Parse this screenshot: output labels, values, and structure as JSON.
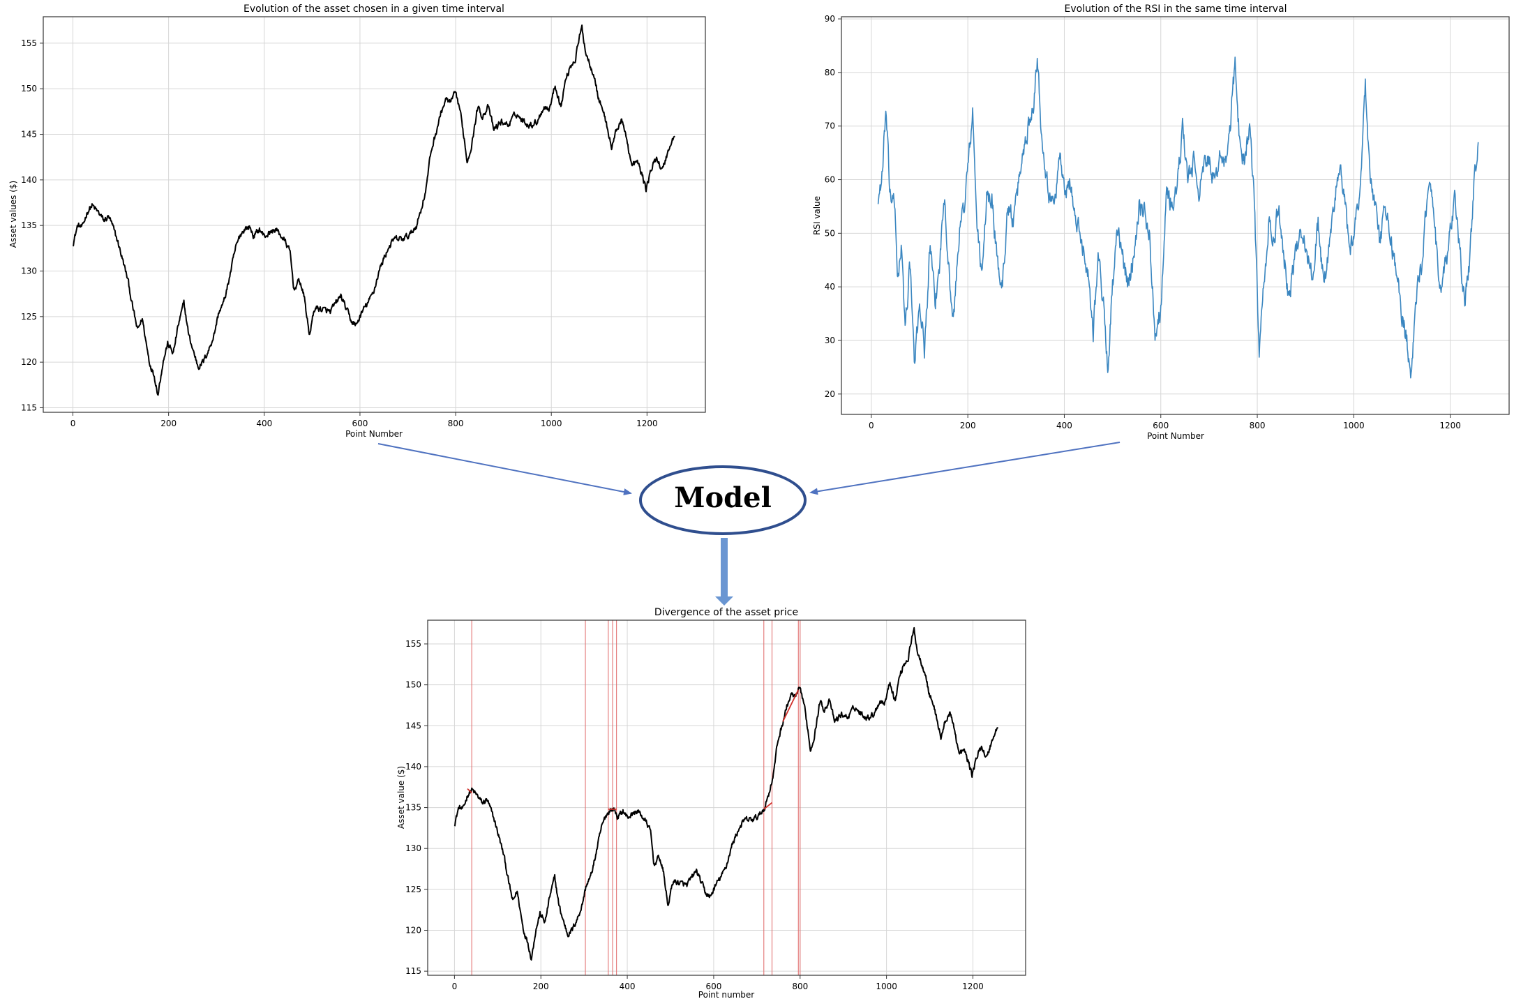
{
  "model": {
    "label": "Model"
  },
  "colors": {
    "price_line": "#000000",
    "rsi_line": "#3a86c0",
    "arrow": "#4f72c0",
    "model_border": "#2f4e8e",
    "down_arrow": "#6a96d2",
    "divergence": "#e06a6a",
    "grid": "#d6d6d6"
  },
  "chart_data": [
    {
      "id": "asset",
      "type": "line",
      "title": "Evolution of the asset chosen in a given time interval",
      "xlabel": "Point Number",
      "ylabel": "Asset values ($)",
      "xlim": [
        -62,
        1322
      ],
      "ylim": [
        114.5,
        157.9
      ],
      "xticks": [
        0,
        200,
        400,
        600,
        800,
        1000,
        1200
      ],
      "yticks": [
        115,
        120,
        125,
        130,
        135,
        140,
        145,
        150,
        155
      ],
      "grid": true,
      "series": [
        {
          "color": "#000000",
          "keypoints": [
            [
              0,
              133
            ],
            [
              10,
              135
            ],
            [
              20,
              134.8
            ],
            [
              30,
              136.5
            ],
            [
              40,
              137.2
            ],
            [
              55,
              136.3
            ],
            [
              65,
              135.5
            ],
            [
              75,
              136
            ],
            [
              85,
              134.6
            ],
            [
              95,
              133
            ],
            [
              105,
              131
            ],
            [
              115,
              129
            ],
            [
              125,
              126
            ],
            [
              135,
              123.5
            ],
            [
              145,
              124.8
            ],
            [
              155,
              121.5
            ],
            [
              160,
              120
            ],
            [
              170,
              118.5
            ],
            [
              178,
              116.5
            ],
            [
              188,
              120
            ],
            [
              198,
              122
            ],
            [
              210,
              121
            ],
            [
              220,
              124
            ],
            [
              232,
              126.5
            ],
            [
              242,
              123
            ],
            [
              250,
              121.5
            ],
            [
              262,
              119.5
            ],
            [
              272,
              120
            ],
            [
              285,
              121.5
            ],
            [
              295,
              123
            ],
            [
              305,
              125.5
            ],
            [
              315,
              126.5
            ],
            [
              322,
              128
            ],
            [
              330,
              130
            ],
            [
              340,
              132.5
            ],
            [
              350,
              134
            ],
            [
              360,
              134.7
            ],
            [
              370,
              134.8
            ],
            [
              378,
              133.8
            ],
            [
              390,
              134.6
            ],
            [
              400,
              133.8
            ],
            [
              412,
              134.2
            ],
            [
              424,
              134.6
            ],
            [
              436,
              133.8
            ],
            [
              446,
              133
            ],
            [
              454,
              132
            ],
            [
              462,
              128
            ],
            [
              474,
              129
            ],
            [
              484,
              127
            ],
            [
              494,
              123
            ],
            [
              506,
              126
            ],
            [
              520,
              125.8
            ],
            [
              538,
              125.5
            ],
            [
              550,
              126.5
            ],
            [
              560,
              127.3
            ],
            [
              570,
              126
            ],
            [
              582,
              124.5
            ],
            [
              592,
              124
            ],
            [
              600,
              125
            ],
            [
              610,
              126
            ],
            [
              620,
              126.8
            ],
            [
              630,
              128
            ],
            [
              640,
              130
            ],
            [
              650,
              131.4
            ],
            [
              660,
              132.6
            ],
            [
              672,
              133.5
            ],
            [
              690,
              133.5
            ],
            [
              705,
              134
            ],
            [
              718,
              135
            ],
            [
              728,
              136.8
            ],
            [
              738,
              139
            ],
            [
              748,
              143
            ],
            [
              758,
              145
            ],
            [
              770,
              147.5
            ],
            [
              780,
              148.8
            ],
            [
              790,
              148.5
            ],
            [
              798,
              149.5
            ],
            [
              808,
              148
            ],
            [
              818,
              144.5
            ],
            [
              824,
              142
            ],
            [
              834,
              144
            ],
            [
              846,
              148
            ],
            [
              856,
              147
            ],
            [
              868,
              148
            ],
            [
              880,
              145.5
            ],
            [
              896,
              146.4
            ],
            [
              910,
              146
            ],
            [
              926,
              147.3
            ],
            [
              940,
              146.5
            ],
            [
              956,
              146
            ],
            [
              970,
              146.4
            ],
            [
              984,
              148
            ],
            [
              996,
              147.8
            ],
            [
              1008,
              150.4
            ],
            [
              1020,
              148
            ],
            [
              1030,
              151
            ],
            [
              1040,
              152.5
            ],
            [
              1050,
              153.2
            ],
            [
              1056,
              155
            ],
            [
              1064,
              156.7
            ],
            [
              1072,
              154
            ],
            [
              1082,
              152.5
            ],
            [
              1090,
              151.5
            ],
            [
              1098,
              149
            ],
            [
              1106,
              148
            ],
            [
              1116,
              146
            ],
            [
              1126,
              143.5
            ],
            [
              1136,
              145.5
            ],
            [
              1146,
              146.5
            ],
            [
              1156,
              145
            ],
            [
              1168,
              141.5
            ],
            [
              1180,
              142
            ],
            [
              1190,
              140.5
            ],
            [
              1198,
              139
            ],
            [
              1208,
              141
            ],
            [
              1220,
              142.5
            ],
            [
              1232,
              141
            ],
            [
              1240,
              142.5
            ],
            [
              1250,
              144
            ],
            [
              1258,
              144.8
            ]
          ],
          "noise": 0.55
        }
      ]
    },
    {
      "id": "rsi",
      "type": "line",
      "title": "Evolution of the RSI in the same time interval",
      "xlabel": "Point Number",
      "ylabel": "RSI value",
      "xlim": [
        -62,
        1322
      ],
      "ylim": [
        16.2,
        90.4
      ],
      "xticks": [
        0,
        200,
        400,
        600,
        800,
        1000,
        1200
      ],
      "yticks": [
        20,
        30,
        40,
        50,
        60,
        70,
        80,
        90
      ],
      "grid": true,
      "series": [
        {
          "color": "#3a86c0",
          "keypoints": [
            [
              14,
              56
            ],
            [
              24,
              62
            ],
            [
              30,
              73
            ],
            [
              38,
              58
            ],
            [
              48,
              55
            ],
            [
              55,
              42
            ],
            [
              62,
              47
            ],
            [
              70,
              33
            ],
            [
              80,
              44
            ],
            [
              90,
              25
            ],
            [
              100,
              38
            ],
            [
              110,
              28
            ],
            [
              122,
              48
            ],
            [
              132,
              36
            ],
            [
              142,
              45
            ],
            [
              152,
              58
            ],
            [
              160,
              44
            ],
            [
              170,
              33
            ],
            [
              182,
              50
            ],
            [
              192,
              55
            ],
            [
              202,
              64
            ],
            [
              210,
              72
            ],
            [
              220,
              50
            ],
            [
              230,
              42
            ],
            [
              240,
              58
            ],
            [
              250,
              56
            ],
            [
              262,
              44
            ],
            [
              272,
              40
            ],
            [
              282,
              55
            ],
            [
              296,
              52
            ],
            [
              306,
              60
            ],
            [
              316,
              66
            ],
            [
              326,
              70
            ],
            [
              336,
              75
            ],
            [
              344,
              83
            ],
            [
              352,
              70
            ],
            [
              362,
              62
            ],
            [
              372,
              55
            ],
            [
              382,
              58
            ],
            [
              392,
              65
            ],
            [
              402,
              56
            ],
            [
              412,
              60
            ],
            [
              424,
              52
            ],
            [
              438,
              48
            ],
            [
              450,
              42
            ],
            [
              460,
              32
            ],
            [
              470,
              46
            ],
            [
              480,
              38
            ],
            [
              490,
              25
            ],
            [
              500,
              40
            ],
            [
              510,
              50
            ],
            [
              522,
              45
            ],
            [
              534,
              40
            ],
            [
              546,
              48
            ],
            [
              556,
              56
            ],
            [
              566,
              54
            ],
            [
              576,
              50
            ],
            [
              588,
              32
            ],
            [
              600,
              36
            ],
            [
              612,
              58
            ],
            [
              624,
              55
            ],
            [
              636,
              60
            ],
            [
              646,
              70
            ],
            [
              656,
              60
            ],
            [
              668,
              63
            ],
            [
              680,
              58
            ],
            [
              690,
              62
            ],
            [
              702,
              64
            ],
            [
              712,
              58
            ],
            [
              724,
              66
            ],
            [
              734,
              62
            ],
            [
              744,
              70
            ],
            [
              754,
              82
            ],
            [
              764,
              66
            ],
            [
              774,
              64
            ],
            [
              784,
              70
            ],
            [
              794,
              55
            ],
            [
              804,
              28
            ],
            [
              814,
              40
            ],
            [
              824,
              52
            ],
            [
              834,
              48
            ],
            [
              844,
              55
            ],
            [
              856,
              45
            ],
            [
              866,
              38
            ],
            [
              878,
              45
            ],
            [
              890,
              52
            ],
            [
              902,
              46
            ],
            [
              914,
              42
            ],
            [
              926,
              52
            ],
            [
              938,
              40
            ],
            [
              950,
              48
            ],
            [
              962,
              58
            ],
            [
              972,
              62
            ],
            [
              982,
              55
            ],
            [
              992,
              46
            ],
            [
              1004,
              52
            ],
            [
              1014,
              60
            ],
            [
              1024,
              78
            ],
            [
              1034,
              60
            ],
            [
              1044,
              55
            ],
            [
              1054,
              48
            ],
            [
              1064,
              55
            ],
            [
              1074,
              50
            ],
            [
              1086,
              44
            ],
            [
              1098,
              36
            ],
            [
              1110,
              30
            ],
            [
              1120,
              24
            ],
            [
              1130,
              38
            ],
            [
              1140,
              44
            ],
            [
              1150,
              55
            ],
            [
              1160,
              58
            ],
            [
              1170,
              48
            ],
            [
              1180,
              38
            ],
            [
              1190,
              44
            ],
            [
              1200,
              50
            ],
            [
              1210,
              56
            ],
            [
              1220,
              46
            ],
            [
              1230,
              38
            ],
            [
              1240,
              44
            ],
            [
              1250,
              60
            ],
            [
              1258,
              67
            ]
          ],
          "noise": 3.2
        }
      ]
    },
    {
      "id": "divergence",
      "type": "line",
      "title": "Divergence of the asset price",
      "xlabel": "Point number",
      "ylabel": "Asset value ($)",
      "xlim": [
        -62,
        1322
      ],
      "ylim": [
        114.5,
        157.9
      ],
      "xticks": [
        0,
        200,
        400,
        600,
        800,
        1000,
        1200
      ],
      "yticks": [
        115,
        120,
        125,
        130,
        135,
        140,
        145,
        150,
        155
      ],
      "grid": true,
      "divergence_lines_x": [
        40,
        303,
        356,
        366,
        375,
        716,
        735,
        796,
        800
      ],
      "divergence_segments": [
        [
          [
            30,
            137.3
          ],
          [
            40,
            136.8
          ]
        ],
        [
          [
            356,
            134.8
          ],
          [
            375,
            134.8
          ]
        ],
        [
          [
            716,
            134.8
          ],
          [
            735,
            135.6
          ]
        ],
        [
          [
            760,
            145.5
          ],
          [
            796,
            149.4
          ]
        ]
      ]
    }
  ]
}
